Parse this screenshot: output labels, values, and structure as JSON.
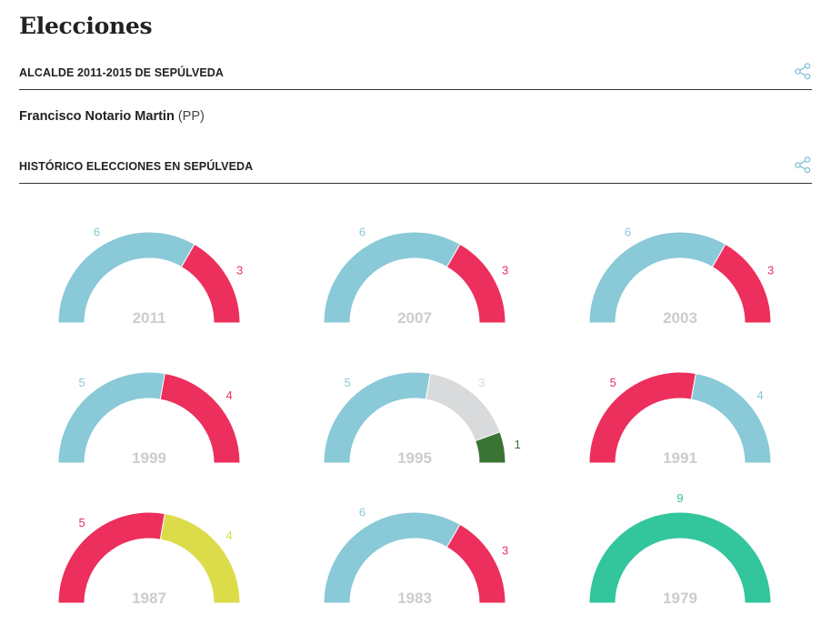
{
  "page": {
    "title": "Elecciones"
  },
  "mayor_section": {
    "heading": "ALCALDE 2011-2015 DE SEPÚLVEDA",
    "mayor_name": "Francisco Notario Martin",
    "mayor_party": "(PP)",
    "share_icon": "share-icon"
  },
  "history_section": {
    "heading": "HISTÓRICO ELECCIONES EN SEPÚLVEDA",
    "share_icon": "share-icon"
  },
  "colors": {
    "light_blue": "#89c9d8",
    "red": "#ec2f5c",
    "light_gray": "#d9dadb",
    "dark_green": "#3a7434",
    "yellow": "#dcdc4a",
    "teal": "#33c59c",
    "year_gray": "#cccccc",
    "share_icon": "#7cc2d6"
  },
  "chart_data": [
    {
      "type": "pie",
      "year": "2011",
      "segments": [
        {
          "value": 6,
          "color": "#89c9d8"
        },
        {
          "value": 3,
          "color": "#ec2f5c"
        }
      ]
    },
    {
      "type": "pie",
      "year": "2007",
      "segments": [
        {
          "value": 6,
          "color": "#89c9d8"
        },
        {
          "value": 3,
          "color": "#ec2f5c"
        }
      ]
    },
    {
      "type": "pie",
      "year": "2003",
      "segments": [
        {
          "value": 6,
          "color": "#89c9d8"
        },
        {
          "value": 3,
          "color": "#ec2f5c"
        }
      ]
    },
    {
      "type": "pie",
      "year": "1999",
      "segments": [
        {
          "value": 5,
          "color": "#89c9d8"
        },
        {
          "value": 4,
          "color": "#ec2f5c"
        }
      ]
    },
    {
      "type": "pie",
      "year": "1995",
      "segments": [
        {
          "value": 5,
          "color": "#89c9d8"
        },
        {
          "value": 3,
          "color": "#d9dadb"
        },
        {
          "value": 1,
          "color": "#3a7434"
        }
      ]
    },
    {
      "type": "pie",
      "year": "1991",
      "segments": [
        {
          "value": 5,
          "color": "#ec2f5c"
        },
        {
          "value": 4,
          "color": "#89c9d8"
        }
      ]
    },
    {
      "type": "pie",
      "year": "1987",
      "segments": [
        {
          "value": 5,
          "color": "#ec2f5c"
        },
        {
          "value": 4,
          "color": "#dcdc4a"
        }
      ]
    },
    {
      "type": "pie",
      "year": "1983",
      "segments": [
        {
          "value": 6,
          "color": "#89c9d8"
        },
        {
          "value": 3,
          "color": "#ec2f5c"
        }
      ]
    },
    {
      "type": "pie",
      "year": "1979",
      "segments": [
        {
          "value": 9,
          "color": "#33c59c"
        }
      ]
    }
  ]
}
